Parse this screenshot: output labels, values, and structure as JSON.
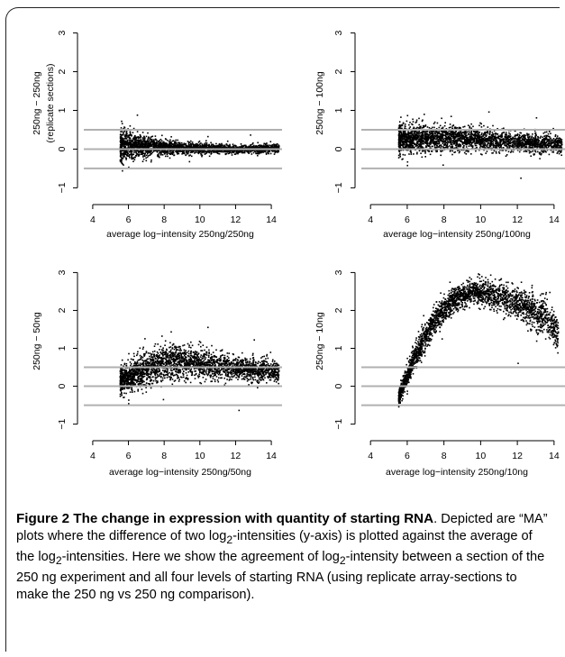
{
  "figure": {
    "caption": {
      "title_part1": "Figure 2 The change in expression with quantity of starting",
      "title_part2": "RNA",
      "body_a": ". Depicted are “MA” plots where the difference of two log",
      "sub_2": "2",
      "body_b": "-intensities (y-axis) is plotted against the average of the log",
      "body_c": "-intensities. Here we show the agreement of log",
      "body_d": "-intensity between a section of the 250 ng experiment and all four levels of starting RNA (using replicate array-sections to make the 250 ng vs 250 ng comparison)."
    }
  },
  "panels": [
    {
      "xlabel": "average log−intensity 250ng/250ng",
      "ylabel_line1": "250ng − 250ng",
      "ylabel_line2": "(replicate sections)"
    },
    {
      "xlabel": "average log−intensity 250ng/100ng",
      "ylabel_line1": "250ng − 100ng",
      "ylabel_line2": ""
    },
    {
      "xlabel": "average log−intensity 250ng/50ng",
      "ylabel_line1": "250ng − 50ng",
      "ylabel_line2": ""
    },
    {
      "xlabel": "average log−intensity 250ng/10ng",
      "ylabel_line1": "250ng − 10ng",
      "ylabel_line2": ""
    }
  ],
  "chart_data": [
    {
      "type": "scatter",
      "xlabel": "average log−intensity 250ng/250ng",
      "ylabel": "250ng − 250ng (replicate sections)",
      "xlim": [
        3.5,
        14.4
      ],
      "ylim": [
        -1.2,
        3.2
      ],
      "xticks": [
        4,
        6,
        8,
        10,
        12,
        14
      ],
      "yticks": [
        -1,
        0,
        1,
        2,
        3
      ],
      "reference_lines_y": [
        -0.5,
        0,
        0.5
      ],
      "reference_line_color": "#b0b0b0",
      "point_color": "#000000",
      "trend_x": [
        5.5,
        6.5,
        8,
        10,
        12,
        14.4
      ],
      "trend_y": [
        0.1,
        0.1,
        0.06,
        0.03,
        0.02,
        0.02
      ],
      "spread": [
        0.4,
        0.3,
        0.18,
        0.12,
        0.1,
        0.12
      ],
      "x_range_points": [
        5.5,
        14.4
      ]
    },
    {
      "type": "scatter",
      "xlabel": "average log−intensity 250ng/100ng",
      "ylabel": "250ng − 100ng",
      "xlim": [
        3.5,
        14.4
      ],
      "ylim": [
        -1.2,
        3.2
      ],
      "xticks": [
        4,
        6,
        8,
        10,
        12,
        14
      ],
      "yticks": [
        -1,
        0,
        1,
        2,
        3
      ],
      "reference_lines_y": [
        -0.5,
        0,
        0.5
      ],
      "reference_line_color": "#b0b0b0",
      "point_color": "#000000",
      "trend_x": [
        5.5,
        6.5,
        8,
        10,
        12,
        14.4
      ],
      "trend_y": [
        0.25,
        0.3,
        0.3,
        0.25,
        0.2,
        0.12
      ],
      "spread": [
        0.4,
        0.35,
        0.32,
        0.28,
        0.25,
        0.25
      ],
      "x_range_points": [
        5.5,
        14.4
      ]
    },
    {
      "type": "scatter",
      "xlabel": "average log−intensity 250ng/50ng",
      "ylabel": "250ng − 50ng",
      "xlim": [
        3.5,
        14.4
      ],
      "ylim": [
        -1.2,
        3.2
      ],
      "xticks": [
        4,
        6,
        8,
        10,
        12,
        14
      ],
      "yticks": [
        -1,
        0,
        1,
        2,
        3
      ],
      "reference_lines_y": [
        -0.5,
        0,
        0.5
      ],
      "reference_line_color": "#b0b0b0",
      "point_color": "#000000",
      "trend_x": [
        5.5,
        6.2,
        7,
        8,
        9,
        10,
        11,
        12,
        13,
        14.4
      ],
      "trend_y": [
        0.15,
        0.3,
        0.5,
        0.65,
        0.65,
        0.6,
        0.55,
        0.5,
        0.45,
        0.4
      ],
      "spread": [
        0.35,
        0.4,
        0.45,
        0.45,
        0.42,
        0.38,
        0.35,
        0.3,
        0.3,
        0.3
      ],
      "x_range_points": [
        5.5,
        14.4
      ]
    },
    {
      "type": "scatter",
      "xlabel": "average log−intensity 250ng/10ng",
      "ylabel": "250ng − 10ng",
      "xlim": [
        3.5,
        14.4
      ],
      "ylim": [
        -1.2,
        3.2
      ],
      "xticks": [
        4,
        6,
        8,
        10,
        12,
        14
      ],
      "yticks": [
        -1,
        0,
        1,
        2,
        3
      ],
      "reference_lines_y": [
        -0.5,
        0,
        0.5
      ],
      "reference_line_color": "#b0b0b0",
      "point_color": "#000000",
      "trend_x": [
        5.5,
        5.8,
        6.2,
        6.8,
        7.5,
        8.5,
        9.5,
        10.5,
        11.5,
        12.5,
        13.5,
        14.2
      ],
      "trend_y": [
        -0.3,
        0.1,
        0.6,
        1.2,
        1.8,
        2.3,
        2.5,
        2.45,
        2.3,
        2.1,
        1.8,
        1.4
      ],
      "spread": [
        0.2,
        0.25,
        0.3,
        0.35,
        0.35,
        0.3,
        0.3,
        0.35,
        0.4,
        0.45,
        0.5,
        0.5
      ],
      "x_range_points": [
        5.5,
        14.2
      ]
    }
  ]
}
